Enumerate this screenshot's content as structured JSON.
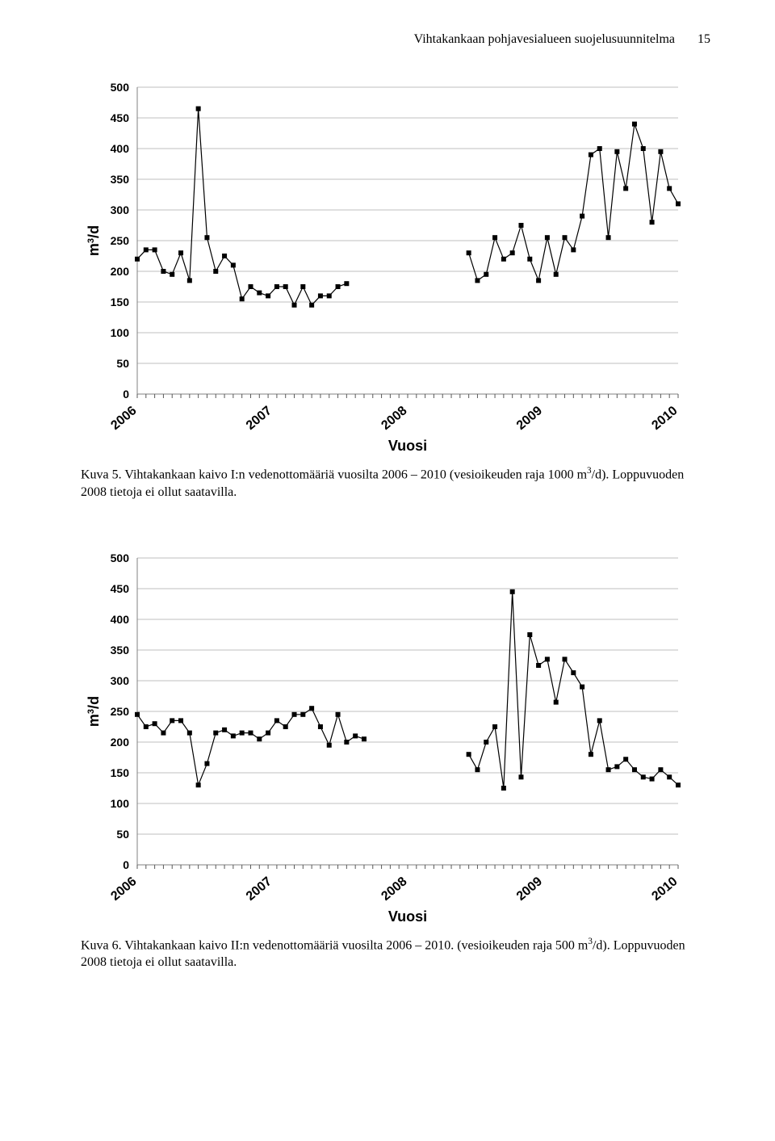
{
  "header": {
    "title": "Vihtakankaan pohjavesialueen suojelusuunnitelma",
    "page_number": "15"
  },
  "chart1": {
    "type": "line",
    "ylabel": "m³/d",
    "xlabel": "Vuosi",
    "ylim": [
      0,
      500
    ],
    "ytick_step": 50,
    "yticks": [
      0,
      50,
      100,
      150,
      200,
      250,
      300,
      350,
      400,
      450,
      500
    ],
    "x_categories": [
      "2006",
      "2007",
      "2008",
      "2009",
      "2010"
    ],
    "x_minor_per_major": 12,
    "series_color": "#000000",
    "marker": "square",
    "marker_size": 6,
    "line_width": 1.2,
    "grid_color": "#bfbfbf",
    "tick_color": "#595959",
    "axis_color": "#808080",
    "label_fontsize": 18,
    "tick_fontsize": 14,
    "x_tick_rotation": -40,
    "background_color": "#ffffff",
    "data": [
      {
        "x": 0,
        "y": 220
      },
      {
        "x": 1,
        "y": 235
      },
      {
        "x": 2,
        "y": 235
      },
      {
        "x": 3,
        "y": 200
      },
      {
        "x": 4,
        "y": 195
      },
      {
        "x": 5,
        "y": 230
      },
      {
        "x": 6,
        "y": 185
      },
      {
        "x": 7,
        "y": 465
      },
      {
        "x": 8,
        "y": 255
      },
      {
        "x": 9,
        "y": 200
      },
      {
        "x": 10,
        "y": 225
      },
      {
        "x": 11,
        "y": 210
      },
      {
        "x": 12,
        "y": 155
      },
      {
        "x": 13,
        "y": 175
      },
      {
        "x": 14,
        "y": 165
      },
      {
        "x": 15,
        "y": 160
      },
      {
        "x": 16,
        "y": 175
      },
      {
        "x": 17,
        "y": 175
      },
      {
        "x": 18,
        "y": 145
      },
      {
        "x": 19,
        "y": 175
      },
      {
        "x": 20,
        "y": 145
      },
      {
        "x": 21,
        "y": 160
      },
      {
        "x": 22,
        "y": 160
      },
      {
        "x": 23,
        "y": 175
      },
      {
        "x": 24,
        "y": 180
      },
      {
        "x": 38,
        "y": 230,
        "newseg": true
      },
      {
        "x": 39,
        "y": 185
      },
      {
        "x": 40,
        "y": 195
      },
      {
        "x": 41,
        "y": 255
      },
      {
        "x": 42,
        "y": 220
      },
      {
        "x": 43,
        "y": 230
      },
      {
        "x": 44,
        "y": 275
      },
      {
        "x": 45,
        "y": 220
      },
      {
        "x": 46,
        "y": 185
      },
      {
        "x": 47,
        "y": 255
      },
      {
        "x": 48,
        "y": 195
      },
      {
        "x": 49,
        "y": 255
      },
      {
        "x": 50,
        "y": 235
      },
      {
        "x": 51,
        "y": 290
      },
      {
        "x": 52,
        "y": 390
      },
      {
        "x": 53,
        "y": 400
      },
      {
        "x": 54,
        "y": 255
      },
      {
        "x": 55,
        "y": 395
      },
      {
        "x": 56,
        "y": 335
      },
      {
        "x": 57,
        "y": 440
      },
      {
        "x": 58,
        "y": 400
      },
      {
        "x": 59,
        "y": 280
      },
      {
        "x": 60,
        "y": 395
      },
      {
        "x": 61,
        "y": 335
      },
      {
        "x": 62,
        "y": 310
      }
    ]
  },
  "caption1": {
    "prefix": "Kuva 5.",
    "text_before_unit": " Vihtakankaan kaivo I:n vedenottomääriä vuosilta 2006 – 2010 (vesioikeuden raja 1000 m",
    "sup": "3",
    "text_after_unit": "/d). Loppuvuoden 2008 tietoja ei ollut saatavilla."
  },
  "chart2": {
    "type": "line",
    "ylabel": "m³/d",
    "xlabel": "Vuosi",
    "ylim": [
      0,
      500
    ],
    "ytick_step": 50,
    "yticks": [
      0,
      50,
      100,
      150,
      200,
      250,
      300,
      350,
      400,
      450,
      500
    ],
    "x_categories": [
      "2006",
      "2007",
      "2008",
      "2009",
      "2010"
    ],
    "x_minor_per_major": 12,
    "series_color": "#000000",
    "marker": "square",
    "marker_size": 6,
    "line_width": 1.2,
    "grid_color": "#bfbfbf",
    "tick_color": "#595959",
    "axis_color": "#808080",
    "label_fontsize": 18,
    "tick_fontsize": 14,
    "x_tick_rotation": -40,
    "background_color": "#ffffff",
    "data": [
      {
        "x": 0,
        "y": 245
      },
      {
        "x": 1,
        "y": 225
      },
      {
        "x": 2,
        "y": 230
      },
      {
        "x": 3,
        "y": 215
      },
      {
        "x": 4,
        "y": 235
      },
      {
        "x": 5,
        "y": 235
      },
      {
        "x": 6,
        "y": 215
      },
      {
        "x": 7,
        "y": 130
      },
      {
        "x": 8,
        "y": 165
      },
      {
        "x": 9,
        "y": 215
      },
      {
        "x": 10,
        "y": 220
      },
      {
        "x": 11,
        "y": 210
      },
      {
        "x": 12,
        "y": 215
      },
      {
        "x": 13,
        "y": 215
      },
      {
        "x": 14,
        "y": 205
      },
      {
        "x": 15,
        "y": 215
      },
      {
        "x": 16,
        "y": 235
      },
      {
        "x": 17,
        "y": 225
      },
      {
        "x": 18,
        "y": 245
      },
      {
        "x": 19,
        "y": 245
      },
      {
        "x": 20,
        "y": 255
      },
      {
        "x": 21,
        "y": 225
      },
      {
        "x": 22,
        "y": 195
      },
      {
        "x": 23,
        "y": 245
      },
      {
        "x": 24,
        "y": 200
      },
      {
        "x": 25,
        "y": 210
      },
      {
        "x": 26,
        "y": 205
      },
      {
        "x": 38,
        "y": 180,
        "newseg": true
      },
      {
        "x": 39,
        "y": 155
      },
      {
        "x": 40,
        "y": 200
      },
      {
        "x": 41,
        "y": 225
      },
      {
        "x": 42,
        "y": 125
      },
      {
        "x": 43,
        "y": 445
      },
      {
        "x": 44,
        "y": 143
      },
      {
        "x": 45,
        "y": 375
      },
      {
        "x": 46,
        "y": 325
      },
      {
        "x": 47,
        "y": 335
      },
      {
        "x": 48,
        "y": 265
      },
      {
        "x": 49,
        "y": 335
      },
      {
        "x": 50,
        "y": 313
      },
      {
        "x": 51,
        "y": 290
      },
      {
        "x": 52,
        "y": 180
      },
      {
        "x": 53,
        "y": 235
      },
      {
        "x": 54,
        "y": 155
      },
      {
        "x": 55,
        "y": 160
      },
      {
        "x": 56,
        "y": 172
      },
      {
        "x": 57,
        "y": 155
      },
      {
        "x": 58,
        "y": 143
      },
      {
        "x": 59,
        "y": 140
      },
      {
        "x": 60,
        "y": 155
      },
      {
        "x": 61,
        "y": 143
      },
      {
        "x": 62,
        "y": 130
      }
    ]
  },
  "caption2": {
    "prefix": "Kuva 6.",
    "text_before_unit": " Vihtakankaan kaivo II:n vedenottomääriä vuosilta 2006 – 2010. (vesioikeuden raja 500 m",
    "sup": "3",
    "text_after_unit": "/d). Loppuvuoden 2008 tietoja ei ollut saatavilla."
  }
}
